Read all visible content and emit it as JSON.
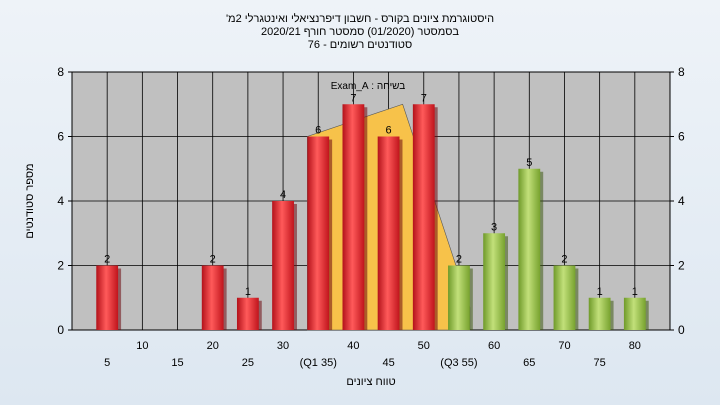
{
  "chart_data": {
    "type": "bar",
    "title_lines": [
      "היסטוגרמת ציונים בקורס - חשבון דיפרנציאלי ואינטגרלי 2מ'",
      "בסמסטר  (01/2020)  סמסטר חורף 2020/21",
      "סטודנטים רשומים - 76"
    ],
    "annotation": "בשיחה : Exam_A",
    "xlabel": "טווח ציונים",
    "ylabel": "מספר סטודנטים",
    "ylim": [
      0,
      8
    ],
    "yticks": [
      0,
      2,
      4,
      6,
      8
    ],
    "categories": [
      5,
      10,
      15,
      20,
      25,
      30,
      35,
      40,
      45,
      50,
      55,
      60,
      65,
      70,
      75,
      80
    ],
    "xtick_labels": [
      "5",
      "10",
      "15",
      "20",
      "25",
      "30",
      "(Q1 35)",
      "40",
      "45",
      "50",
      "(Q3 55)",
      "60",
      "65",
      "70",
      "75",
      "80"
    ],
    "values": [
      2,
      0,
      0,
      2,
      1,
      4,
      6,
      7,
      6,
      7,
      2,
      3,
      5,
      2,
      1,
      1
    ],
    "bar_groups": [
      "low",
      "low",
      "low",
      "low",
      "low",
      "low",
      "low",
      "low",
      "low",
      "low",
      "high",
      "high",
      "high",
      "high",
      "high",
      "high"
    ],
    "iqr_band": {
      "q1": 35,
      "q3": 55,
      "peak": 7
    },
    "colors": {
      "low_bar": "#e8262b",
      "high_bar": "#8fc043",
      "iqr_band": "#f7c24a",
      "plot_bg": "#c0c0c0",
      "grid": "#000000"
    },
    "grid": true
  }
}
